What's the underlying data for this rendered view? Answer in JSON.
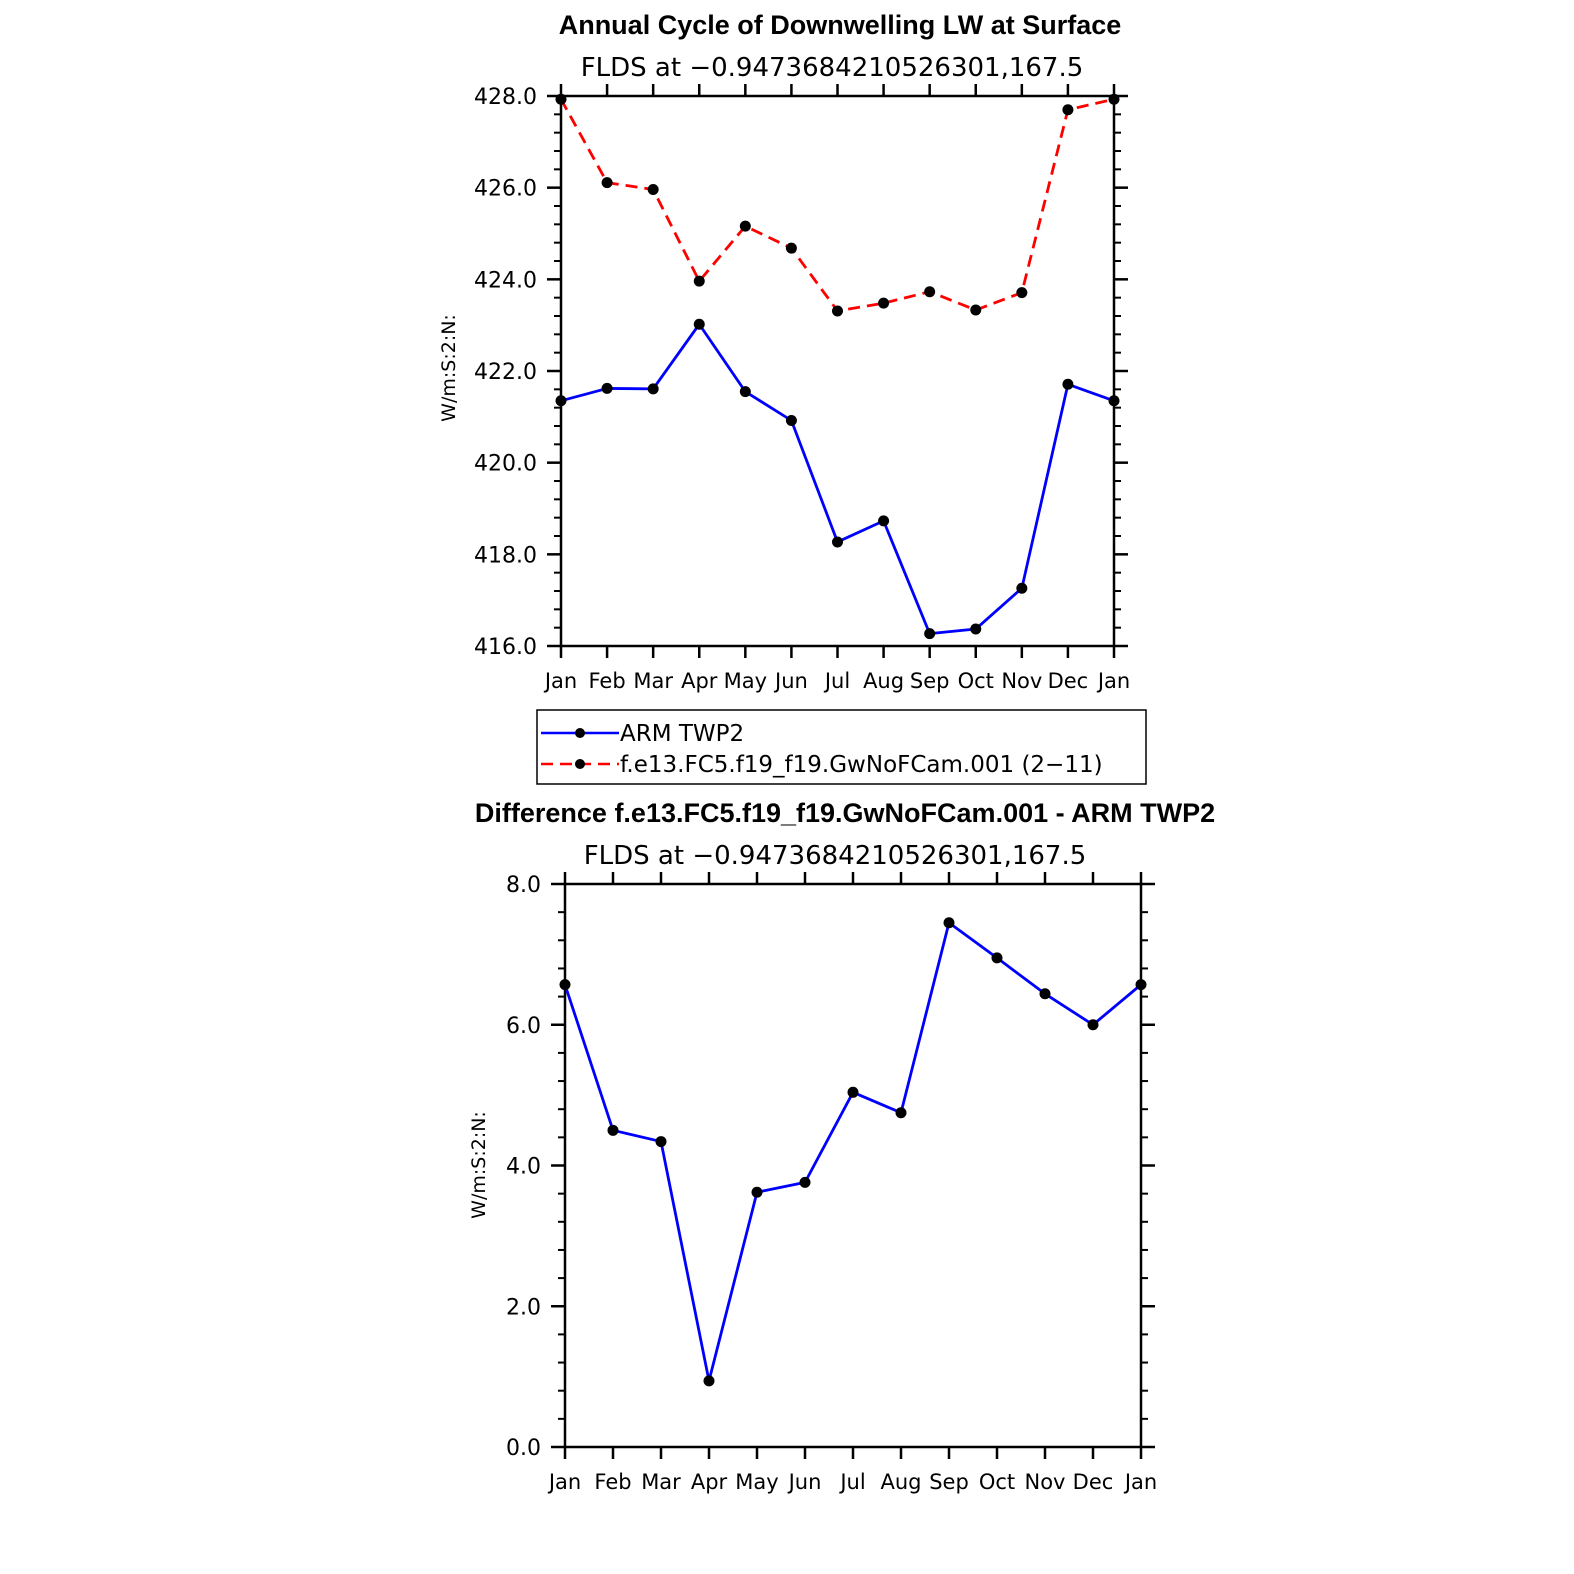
{
  "chart_data": [
    {
      "type": "line",
      "title": "Annual Cycle of Downwelling LW at Surface",
      "subtitle": "FLDS at −0.9473684210526301,167.5",
      "xlabel": "",
      "ylabel": "W/m:S:2:N:",
      "categories": [
        "Jan",
        "Feb",
        "Mar",
        "Apr",
        "May",
        "Jun",
        "Jul",
        "Aug",
        "Sep",
        "Oct",
        "Nov",
        "Dec",
        "Jan"
      ],
      "ylim": [
        416,
        428
      ],
      "yticks": [
        "416.0",
        "418.0",
        "420.0",
        "422.0",
        "424.0",
        "426.0",
        "428.0"
      ],
      "series": [
        {
          "name": "ARM TWP2",
          "color": "#0000ff",
          "dash": "solid",
          "values": [
            421.35,
            421.62,
            421.61,
            423.02,
            421.55,
            420.92,
            418.27,
            418.73,
            416.27,
            416.37,
            417.26,
            421.71,
            421.35
          ]
        },
        {
          "name": "f.e13.FC5.f19_f19.GwNoFCam.001 (2−11)",
          "color": "#ff0000",
          "dash": "dashed",
          "values": [
            427.93,
            426.11,
            425.96,
            423.96,
            425.16,
            424.68,
            423.31,
            423.48,
            423.73,
            423.33,
            423.71,
            427.7,
            427.93
          ]
        }
      ],
      "legend": {
        "position": "bottom",
        "entries": [
          "ARM TWP2",
          "f.e13.FC5.f19_f19.GwNoFCam.001 (2−11)"
        ]
      }
    },
    {
      "type": "line",
      "title": "Difference f.e13.FC5.f19_f19.GwNoFCam.001 - ARM TWP2",
      "subtitle": "FLDS at −0.9473684210526301,167.5",
      "xlabel": "",
      "ylabel": "W/m:S:2:N:",
      "categories": [
        "Jan",
        "Feb",
        "Mar",
        "Apr",
        "May",
        "Jun",
        "Jul",
        "Aug",
        "Sep",
        "Oct",
        "Nov",
        "Dec",
        "Jan"
      ],
      "ylim": [
        0,
        8
      ],
      "yticks": [
        "0.0",
        "2.0",
        "4.0",
        "6.0",
        "8.0"
      ],
      "series": [
        {
          "name": "Difference",
          "color": "#0000ff",
          "dash": "solid",
          "values": [
            6.57,
            4.5,
            4.34,
            0.94,
            3.62,
            3.76,
            5.04,
            4.75,
            7.45,
            6.95,
            6.44,
            6.0,
            6.57
          ]
        }
      ]
    }
  ]
}
